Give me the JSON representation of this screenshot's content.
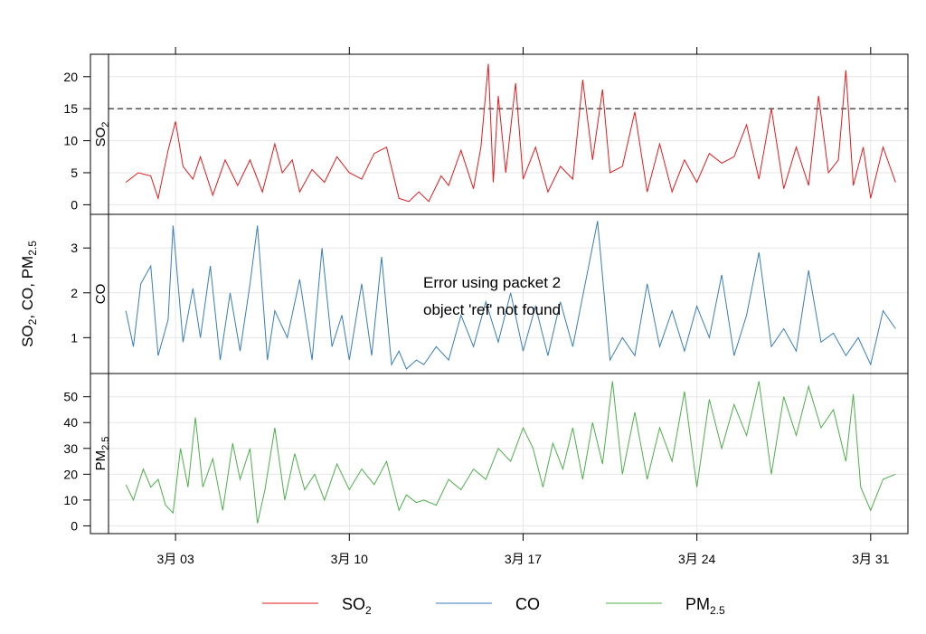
{
  "chart_data": {
    "type": "line",
    "ylabel": "SO2, CO, PM2.5",
    "ylabel_parts": {
      "a": "SO",
      "a_sub": "2",
      "b": ", CO, PM",
      "b_sub": "2.5"
    },
    "x_ticks": [
      "3月 03",
      "3月 10",
      "3月 17",
      "3月 24",
      "3月 31"
    ],
    "x_tick_days": [
      3,
      10,
      17,
      24,
      31
    ],
    "x_range_days": [
      0.3,
      32.5
    ],
    "grid": true,
    "error_message": [
      "Error using packet 2",
      "object 'ref' not found"
    ],
    "legend": {
      "placement": "bottom",
      "items": [
        {
          "name": "SO",
          "sub": "2",
          "color": "#e41a1c"
        },
        {
          "name": "CO",
          "sub": "",
          "color": "#377eb8"
        },
        {
          "name": "PM",
          "sub": "2.5",
          "color": "#4daf4a"
        }
      ]
    },
    "panels": [
      {
        "label": "SO",
        "label_sub": "2",
        "color": "#e41a1c",
        "ylim": [
          -1.5,
          23.5
        ],
        "yticks": [
          0,
          5,
          10,
          15,
          20
        ],
        "reference_line": 15,
        "x": [
          1.0,
          1.5,
          2.0,
          2.3,
          2.7,
          3.0,
          3.3,
          3.7,
          4.0,
          4.5,
          5.0,
          5.5,
          6.0,
          6.5,
          7.0,
          7.3,
          7.7,
          8.0,
          8.5,
          9.0,
          9.5,
          10.0,
          10.5,
          11.0,
          11.5,
          12.0,
          12.4,
          12.8,
          13.2,
          13.7,
          14.0,
          14.5,
          15.0,
          15.3,
          15.6,
          15.8,
          16.0,
          16.3,
          16.7,
          17.0,
          17.5,
          18.0,
          18.5,
          19.0,
          19.4,
          19.8,
          20.2,
          20.5,
          21.0,
          21.5,
          22.0,
          22.5,
          23.0,
          23.5,
          24.0,
          24.5,
          25.0,
          25.5,
          26.0,
          26.5,
          27.0,
          27.5,
          28.0,
          28.5,
          28.9,
          29.3,
          29.7,
          30.0,
          30.3,
          30.7,
          31.0,
          31.5,
          32.0
        ],
        "values": [
          3.5,
          5.0,
          4.5,
          1.0,
          8.5,
          13.0,
          6.0,
          4.0,
          7.5,
          1.5,
          7.0,
          3.0,
          7.0,
          2.0,
          9.5,
          5.0,
          7.0,
          2.0,
          5.5,
          3.5,
          7.5,
          5.0,
          4.0,
          8.0,
          9.0,
          1.0,
          0.5,
          2.0,
          0.5,
          4.5,
          3.0,
          8.5,
          2.5,
          9.0,
          22.0,
          3.5,
          17.0,
          5.0,
          19.0,
          4.0,
          9.0,
          2.0,
          6.0,
          4.0,
          19.5,
          7.0,
          18.0,
          5.0,
          6.0,
          14.5,
          2.0,
          9.5,
          2.0,
          7.0,
          3.5,
          8.0,
          6.5,
          7.5,
          12.5,
          4.0,
          15.0,
          2.5,
          9.0,
          3.0,
          17.0,
          5.0,
          7.0,
          21.0,
          3.0,
          9.0,
          1.0,
          9.0,
          3.5
        ]
      },
      {
        "label": "CO",
        "label_sub": "",
        "color": "#377eb8",
        "ylim": [
          0.2,
          3.75
        ],
        "yticks": [
          1,
          2,
          3
        ],
        "x": [
          1.0,
          1.3,
          1.6,
          2.0,
          2.3,
          2.7,
          2.9,
          3.3,
          3.7,
          4.0,
          4.4,
          4.8,
          5.2,
          5.6,
          6.0,
          6.3,
          6.7,
          7.0,
          7.5,
          8.0,
          8.5,
          8.9,
          9.3,
          9.7,
          10.0,
          10.5,
          10.9,
          11.3,
          11.7,
          12.0,
          12.3,
          12.7,
          13.0,
          13.5,
          14.0,
          14.5,
          15.0,
          15.5,
          16.0,
          16.5,
          17.0,
          17.5,
          18.0,
          18.5,
          19.0,
          19.5,
          20.0,
          20.5,
          21.0,
          21.5,
          22.0,
          22.5,
          23.0,
          23.5,
          24.0,
          24.5,
          25.0,
          25.5,
          26.0,
          26.5,
          27.0,
          27.5,
          28.0,
          28.5,
          29.0,
          29.5,
          30.0,
          30.5,
          31.0,
          31.5,
          32.0
        ],
        "values": [
          1.6,
          0.8,
          2.2,
          2.6,
          0.6,
          1.4,
          3.5,
          0.9,
          2.1,
          1.0,
          2.6,
          0.5,
          2.0,
          0.7,
          2.2,
          3.5,
          0.5,
          1.6,
          1.0,
          2.3,
          0.5,
          3.0,
          0.8,
          1.5,
          0.5,
          2.2,
          0.6,
          2.8,
          0.4,
          0.7,
          0.3,
          0.5,
          0.4,
          0.8,
          0.5,
          1.5,
          0.8,
          1.8,
          0.9,
          2.0,
          0.7,
          1.7,
          0.6,
          1.8,
          0.8,
          2.2,
          3.6,
          0.5,
          1.0,
          0.6,
          2.2,
          0.8,
          1.6,
          0.7,
          1.7,
          1.0,
          2.4,
          0.6,
          1.5,
          2.9,
          0.8,
          1.2,
          0.7,
          2.5,
          0.9,
          1.1,
          0.6,
          1.0,
          0.4,
          1.6,
          1.2
        ]
      },
      {
        "label": "PM",
        "label_sub": "2.5",
        "color": "#4daf4a",
        "ylim": [
          -3,
          59
        ],
        "yticks": [
          0,
          10,
          20,
          30,
          40,
          50
        ],
        "x": [
          1.0,
          1.3,
          1.7,
          2.0,
          2.3,
          2.6,
          2.9,
          3.2,
          3.5,
          3.8,
          4.1,
          4.5,
          4.9,
          5.3,
          5.6,
          6.0,
          6.3,
          6.6,
          7.0,
          7.4,
          7.8,
          8.2,
          8.6,
          9.0,
          9.5,
          10.0,
          10.5,
          11.0,
          11.5,
          12.0,
          12.3,
          12.7,
          13.0,
          13.5,
          14.0,
          14.5,
          15.0,
          15.5,
          16.0,
          16.5,
          17.0,
          17.4,
          17.8,
          18.2,
          18.6,
          19.0,
          19.4,
          19.8,
          20.2,
          20.6,
          21.0,
          21.5,
          22.0,
          22.5,
          23.0,
          23.5,
          24.0,
          24.5,
          25.0,
          25.5,
          26.0,
          26.5,
          27.0,
          27.5,
          28.0,
          28.5,
          29.0,
          29.5,
          30.0,
          30.3,
          30.6,
          31.0,
          31.5,
          32.0
        ],
        "values": [
          16,
          10,
          22,
          15,
          18,
          8,
          5,
          30,
          15,
          42,
          15,
          26,
          6,
          32,
          18,
          30,
          1,
          14,
          38,
          10,
          28,
          14,
          20,
          10,
          24,
          14,
          22,
          16,
          25,
          6,
          12,
          9,
          10,
          8,
          18,
          14,
          22,
          18,
          30,
          25,
          38,
          30,
          15,
          32,
          22,
          38,
          18,
          40,
          24,
          56,
          20,
          44,
          18,
          38,
          25,
          52,
          15,
          49,
          30,
          47,
          35,
          56,
          20,
          50,
          35,
          54,
          38,
          45,
          25,
          51,
          15,
          6,
          18,
          20
        ]
      }
    ]
  }
}
